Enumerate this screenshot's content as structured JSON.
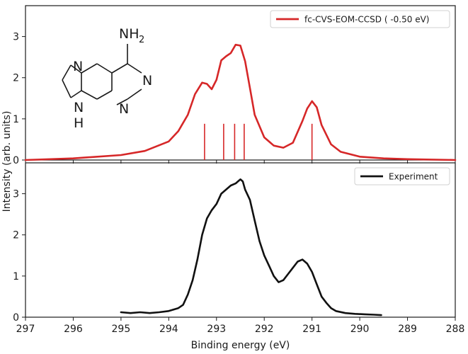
{
  "chart_data": {
    "type": "line",
    "xlabel": "Binding energy (eV)",
    "ylabel": "Intensity (arb. units)",
    "xlim": [
      297,
      288
    ],
    "x_reversed": true,
    "x_ticks": [
      "297",
      "296",
      "295",
      "294",
      "293",
      "292",
      "291",
      "290",
      "289",
      "288"
    ],
    "grid": false,
    "panels": [
      {
        "position": "top",
        "ylim": [
          0,
          3.75
        ],
        "y_ticks": [
          "0",
          "1",
          "2",
          "3"
        ],
        "legend_location": "top-right",
        "series": [
          {
            "name": "fc-CVS-EOM-CCSD ( -0.50 eV)",
            "color": "#d62728",
            "kind": "spectrum",
            "x": [
              297.0,
              296.0,
              295.0,
              294.5,
              294.0,
              293.8,
              293.6,
              293.45,
              293.3,
              293.2,
              293.1,
              293.0,
              292.9,
              292.8,
              292.7,
              292.6,
              292.5,
              292.4,
              292.3,
              292.2,
              292.0,
              291.8,
              291.6,
              291.4,
              291.2,
              291.1,
              291.0,
              290.9,
              290.8,
              290.6,
              290.4,
              290.0,
              289.5,
              289.0,
              288.0
            ],
            "y": [
              0.0,
              0.04,
              0.12,
              0.22,
              0.45,
              0.7,
              1.1,
              1.6,
              1.88,
              1.85,
              1.72,
              1.95,
              2.42,
              2.52,
              2.6,
              2.8,
              2.78,
              2.4,
              1.75,
              1.1,
              0.55,
              0.35,
              0.3,
              0.42,
              0.95,
              1.25,
              1.43,
              1.28,
              0.85,
              0.38,
              0.2,
              0.08,
              0.04,
              0.02,
              0.0
            ]
          },
          {
            "name": "",
            "color": "#d62728",
            "kind": "sticks",
            "x": [
              293.25,
              292.85,
              292.62,
              292.42,
              291.0
            ],
            "y": [
              0.88,
              0.88,
              0.88,
              0.88,
              0.88
            ]
          }
        ],
        "inset": {
          "kind": "molecule",
          "labels": [
            "NH",
            "2",
            "N",
            "N",
            "N",
            "N",
            "H"
          ]
        }
      },
      {
        "position": "bottom",
        "ylim": [
          0,
          3.75
        ],
        "y_ticks": [
          "0",
          "1",
          "2",
          "3"
        ],
        "legend_location": "top-right",
        "series": [
          {
            "name": "Experiment",
            "color": "#111111",
            "kind": "spectrum",
            "x": [
              295.0,
              294.8,
              294.6,
              294.4,
              294.2,
              294.0,
              293.8,
              293.7,
              293.6,
              293.5,
              293.4,
              293.3,
              293.2,
              293.1,
              293.0,
              292.9,
              292.8,
              292.7,
              292.6,
              292.5,
              292.45,
              292.4,
              292.3,
              292.2,
              292.1,
              292.0,
              291.9,
              291.8,
              291.7,
              291.6,
              291.5,
              291.4,
              291.3,
              291.2,
              291.1,
              291.0,
              290.9,
              290.8,
              290.7,
              290.6,
              290.5,
              290.3,
              290.1,
              289.9,
              289.7,
              289.55
            ],
            "y": [
              0.12,
              0.1,
              0.12,
              0.1,
              0.12,
              0.15,
              0.22,
              0.3,
              0.55,
              0.9,
              1.4,
              2.0,
              2.4,
              2.6,
              2.75,
              3.0,
              3.1,
              3.2,
              3.25,
              3.35,
              3.3,
              3.1,
              2.85,
              2.35,
              1.85,
              1.5,
              1.25,
              1.0,
              0.85,
              0.9,
              1.05,
              1.2,
              1.35,
              1.4,
              1.3,
              1.1,
              0.8,
              0.5,
              0.35,
              0.22,
              0.15,
              0.1,
              0.08,
              0.07,
              0.06,
              0.05
            ]
          }
        ]
      }
    ]
  }
}
